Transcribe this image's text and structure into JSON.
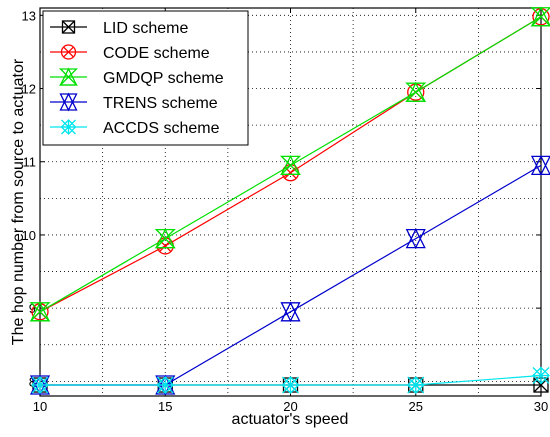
{
  "chart_data": {
    "type": "line",
    "xlabel": "actuator's speed",
    "ylabel": "The hop number from source to actuator",
    "xlim": [
      10,
      30
    ],
    "ylim": [
      7.8,
      13.1
    ],
    "xticks": [
      "10",
      "15",
      "20",
      "25",
      "30"
    ],
    "yticks": [
      "8",
      "9",
      "10",
      "11",
      "12",
      "13"
    ],
    "x": [
      10,
      15,
      20,
      25,
      30
    ],
    "grid": "dotted",
    "legend_position": "top-left",
    "series": [
      {
        "name": "LID scheme",
        "color": "#000000",
        "marker": "boxed-x",
        "values": [
          7.95,
          7.95,
          7.95,
          7.95,
          7.95
        ]
      },
      {
        "name": "CODE scheme",
        "color": "#ff0000",
        "marker": "circle-x",
        "values": [
          8.95,
          9.85,
          10.85,
          11.95,
          12.98
        ]
      },
      {
        "name": "GMDQP scheme",
        "color": "#00e000",
        "marker": "bowtie",
        "values": [
          8.95,
          9.95,
          10.95,
          11.95,
          12.98
        ]
      },
      {
        "name": "TRENS scheme",
        "color": "#0000cc",
        "marker": "hourglass",
        "values": [
          7.95,
          7.95,
          8.95,
          9.95,
          10.95
        ]
      },
      {
        "name": "ACCDS scheme",
        "color": "#00e5ee",
        "marker": "asterisk-diamond",
        "values": [
          7.95,
          7.95,
          7.95,
          7.95,
          8.08
        ]
      }
    ]
  }
}
